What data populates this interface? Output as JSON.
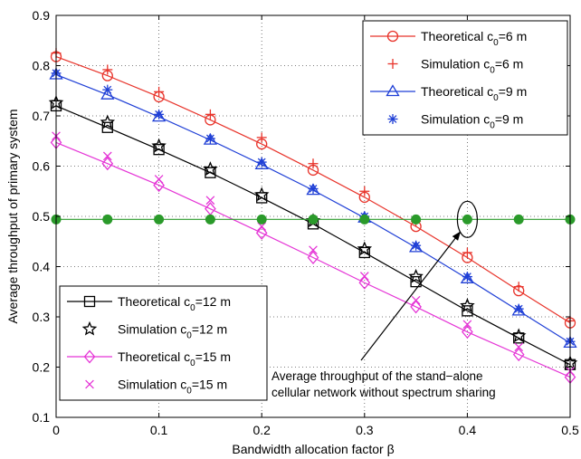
{
  "chart_data": {
    "type": "line",
    "xlabel": "Bandwidth allocation factor β",
    "ylabel": "Average throughput of primary system",
    "xlim": [
      0,
      0.5
    ],
    "ylim": [
      0.1,
      0.9
    ],
    "xticks": [
      0,
      0.1,
      0.2,
      0.3,
      0.4,
      0.5
    ],
    "yticks": [
      0.1,
      0.2,
      0.3,
      0.4,
      0.5,
      0.6,
      0.7,
      0.8,
      0.9
    ],
    "grid": "dotted",
    "x": [
      0,
      0.05,
      0.1,
      0.15,
      0.2,
      0.25,
      0.3,
      0.35,
      0.4,
      0.45,
      0.5
    ],
    "series": [
      {
        "name": "Theoretical c0=6 m",
        "name_main": "Theoretical c",
        "name_sub": "0",
        "name_tail": "=6 m",
        "kind": "theory",
        "color": "#e8332a",
        "marker": "circle",
        "values": [
          0.818,
          0.78,
          0.738,
          0.692,
          0.644,
          0.592,
          0.538,
          0.48,
          0.418,
          0.352,
          0.288
        ]
      },
      {
        "name": "Simulation c0=6 m",
        "name_main": "Simulation c",
        "name_sub": "0",
        "name_tail": "=6 m",
        "kind": "sim",
        "color": "#e8332a",
        "marker": "plus",
        "values": [
          0.825,
          0.792,
          0.748,
          0.703,
          0.657,
          0.605,
          0.55,
          0.49,
          0.428,
          0.36,
          0.292
        ]
      },
      {
        "name": "Theoretical c0=9 m",
        "name_main": "Theoretical c",
        "name_sub": "0",
        "name_tail": "=9 m",
        "kind": "theory",
        "color": "#1f3fd6",
        "marker": "triangle",
        "values": [
          0.782,
          0.742,
          0.698,
          0.652,
          0.603,
          0.552,
          0.497,
          0.438,
          0.376,
          0.312,
          0.248
        ]
      },
      {
        "name": "Simulation c0=9 m",
        "name_main": "Simulation c",
        "name_sub": "0",
        "name_tail": "=9 m",
        "kind": "sim",
        "color": "#1f3fd6",
        "marker": "asterisk",
        "values": [
          0.785,
          0.752,
          0.703,
          0.655,
          0.608,
          0.555,
          0.5,
          0.442,
          0.38,
          0.316,
          0.251
        ]
      },
      {
        "name": "Theoretical c0=12 m",
        "name_main": "Theoretical c",
        "name_sub": "0",
        "name_tail": "=12 m",
        "kind": "theory",
        "color": "#000000",
        "marker": "square",
        "values": [
          0.72,
          0.677,
          0.633,
          0.587,
          0.537,
          0.485,
          0.428,
          0.37,
          0.312,
          0.258,
          0.205
        ]
      },
      {
        "name": "Simulation c0=12 m",
        "name_main": "Simulation c",
        "name_sub": "0",
        "name_tail": "=12 m",
        "kind": "sim",
        "color": "#000000",
        "marker": "star",
        "values": [
          0.726,
          0.687,
          0.64,
          0.594,
          0.543,
          0.491,
          0.435,
          0.38,
          0.322,
          0.262,
          0.208
        ]
      },
      {
        "name": "Theoretical c0=15 m",
        "name_main": "Theoretical c",
        "name_sub": "0",
        "name_tail": "=15 m",
        "kind": "theory",
        "color": "#e535d6",
        "marker": "diamond",
        "values": [
          0.647,
          0.605,
          0.562,
          0.515,
          0.467,
          0.418,
          0.368,
          0.32,
          0.27,
          0.225,
          0.18
        ]
      },
      {
        "name": "Simulation c0=15 m",
        "name_main": "Simulation c",
        "name_sub": "0",
        "name_tail": "=15 m",
        "kind": "sim",
        "color": "#e535d6",
        "marker": "x",
        "values": [
          0.66,
          0.62,
          0.574,
          0.532,
          0.48,
          0.433,
          0.381,
          0.333,
          0.285,
          0.24,
          0.192
        ]
      },
      {
        "name": "",
        "kind": "reference",
        "color": "#2a9a2a",
        "marker": "dot",
        "values": [
          0.494,
          0.494,
          0.494,
          0.494,
          0.494,
          0.494,
          0.494,
          0.494,
          0.494,
          0.494,
          0.494
        ]
      }
    ],
    "legends": [
      {
        "placement": "top-right",
        "series_indices": [
          0,
          1,
          2,
          3
        ]
      },
      {
        "placement": "bottom-left",
        "series_indices": [
          4,
          5,
          6,
          7
        ]
      }
    ],
    "annotation": {
      "line1": "Average throughput of the stand−alone",
      "line2": "cellular network without spectrum sharing",
      "target_x": 0.4,
      "target_y": 0.494
    }
  }
}
